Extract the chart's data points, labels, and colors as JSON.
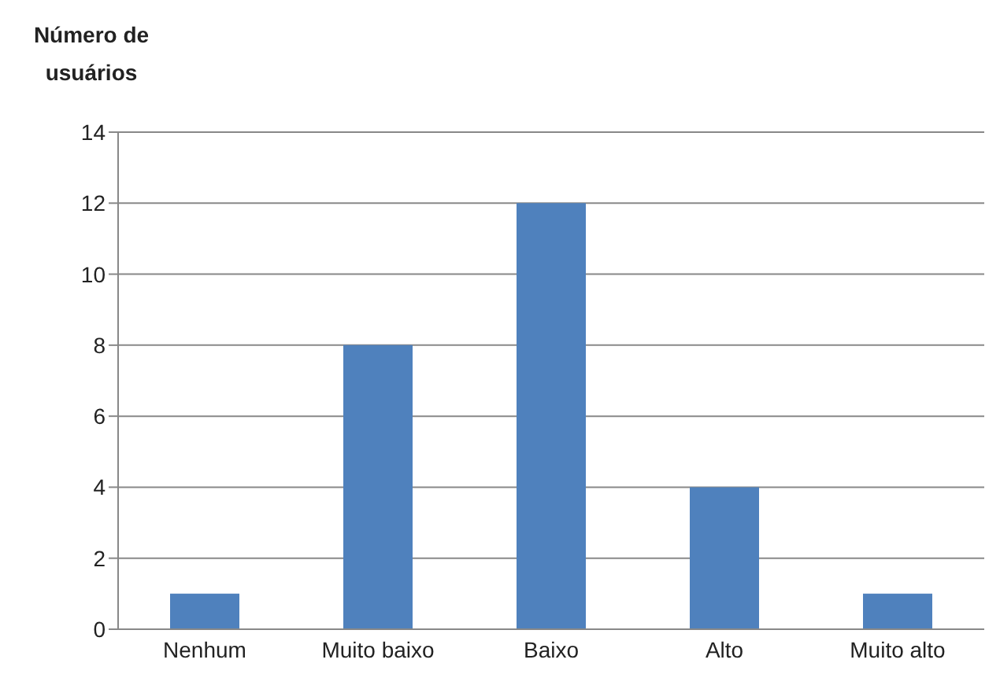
{
  "chart_data": {
    "type": "bar",
    "ylabel": "Número de usuários",
    "categories": [
      "Nenhum",
      "Muito baixo",
      "Baixo",
      "Alto",
      "Muito alto"
    ],
    "values": [
      1,
      8,
      12,
      4,
      1
    ],
    "color": "#4f81bd",
    "ylim": [
      0,
      14
    ],
    "yticks": [
      0,
      2,
      4,
      6,
      8,
      10,
      12,
      14
    ],
    "grid": "y"
  }
}
